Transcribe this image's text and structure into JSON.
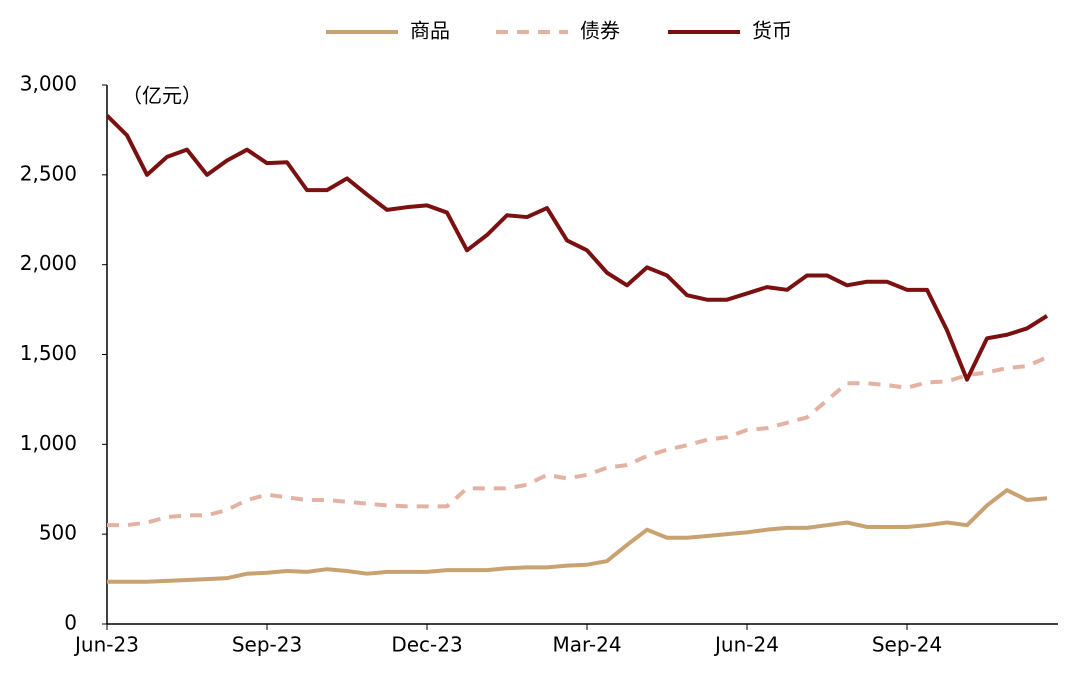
{
  "chart_data": {
    "type": "line",
    "unit_label": "（亿元）",
    "categories": [
      "Jun-23",
      null,
      null,
      null,
      null,
      null,
      null,
      null,
      "Sep-23",
      null,
      null,
      null,
      null,
      null,
      null,
      null,
      "Dec-23",
      null,
      null,
      null,
      null,
      null,
      null,
      null,
      "Mar-24",
      null,
      null,
      null,
      null,
      null,
      null,
      null,
      "Jun-24",
      null,
      null,
      null,
      null,
      null,
      null,
      null,
      "Sep-24",
      null,
      null,
      null,
      null,
      null,
      null,
      null
    ],
    "series": [
      {
        "name": "商品",
        "color": "#c9a271",
        "style": "solid",
        "values": [
          235,
          235,
          235,
          240,
          245,
          250,
          255,
          280,
          285,
          295,
          290,
          305,
          295,
          280,
          290,
          290,
          290,
          300,
          300,
          300,
          310,
          315,
          315,
          325,
          330,
          350,
          440,
          525,
          480,
          480,
          490,
          500,
          510,
          525,
          535,
          535,
          550,
          565,
          540,
          540,
          540,
          550,
          565,
          550,
          660,
          745,
          690,
          700
        ]
      },
      {
        "name": "债券",
        "color": "#e3b2a2",
        "style": "dashed",
        "values": [
          550,
          550,
          565,
          595,
          605,
          605,
          635,
          690,
          720,
          705,
          690,
          690,
          680,
          670,
          660,
          655,
          655,
          655,
          755,
          755,
          755,
          775,
          830,
          810,
          830,
          870,
          885,
          935,
          970,
          995,
          1025,
          1040,
          1080,
          1090,
          1120,
          1150,
          1245,
          1340,
          1340,
          1330,
          1315,
          1345,
          1350,
          1385,
          1400,
          1425,
          1435,
          1485
        ]
      },
      {
        "name": "货币",
        "color": "#7a1010",
        "style": "solid",
        "values": [
          2830,
          2720,
          2500,
          2600,
          2640,
          2500,
          2580,
          2640,
          2565,
          2570,
          2415,
          2415,
          2480,
          2390,
          2305,
          2320,
          2330,
          2290,
          2080,
          2165,
          2275,
          2265,
          2315,
          2135,
          2080,
          1955,
          1885,
          1985,
          1940,
          1830,
          1805,
          1805,
          1840,
          1875,
          1860,
          1940,
          1940,
          1885,
          1905,
          1905,
          1860,
          1860,
          1635,
          1360,
          1590,
          1610,
          1645,
          1715
        ]
      }
    ],
    "ylim": [
      0,
      3000
    ],
    "yticks": [
      0,
      500,
      {
        "value": 1000,
        "label": "1,000"
      },
      {
        "value": 1500,
        "label": "1,500"
      },
      {
        "value": 2000,
        "label": "2,000"
      },
      {
        "value": 2500,
        "label": "2,500"
      },
      {
        "value": 3000,
        "label": "3,000"
      }
    ],
    "grid": false,
    "legend": "top"
  }
}
